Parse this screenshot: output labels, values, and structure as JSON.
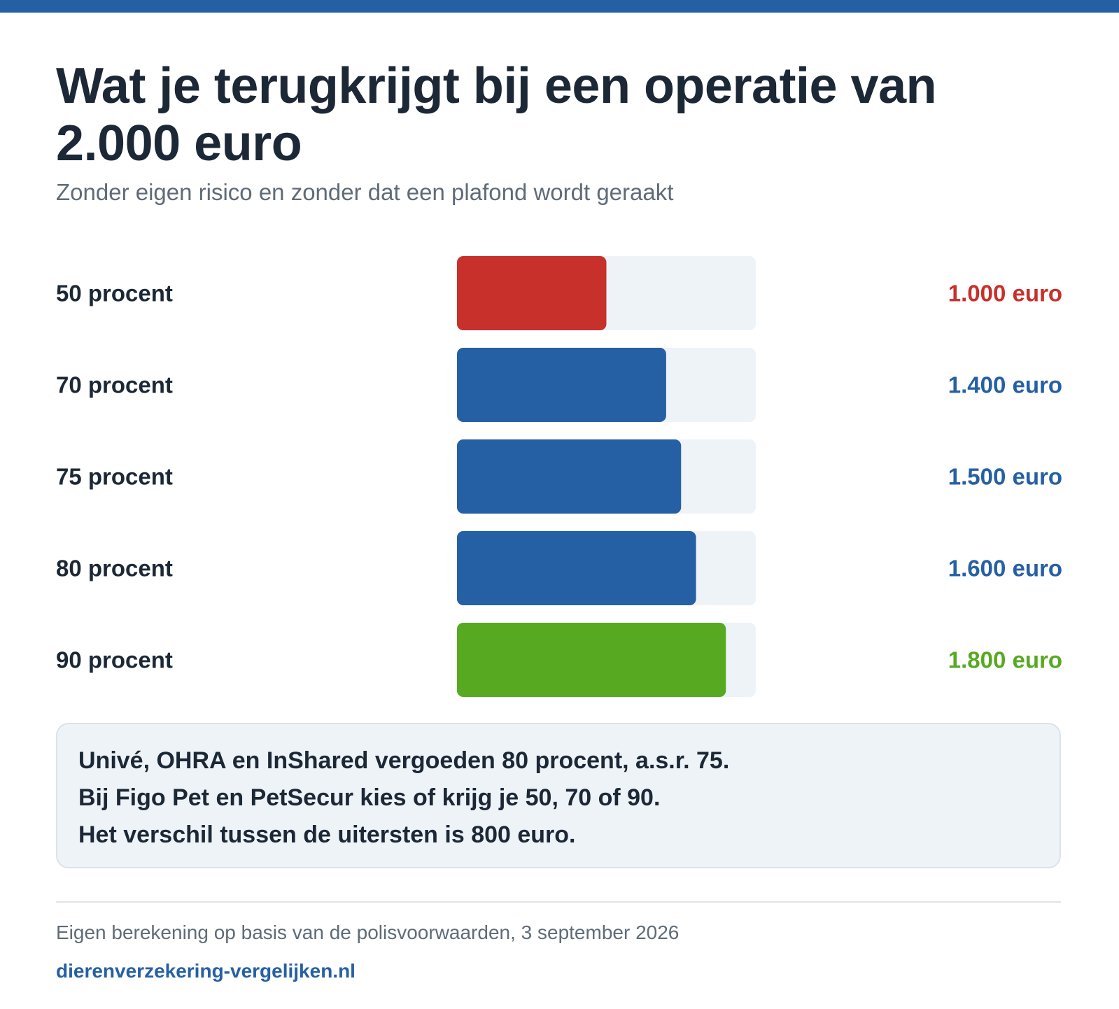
{
  "header": {
    "title": "Wat je terugkrijgt bij een operatie van 2.000 euro",
    "subtitle": "Zonder eigen risico en zonder dat een plafond wordt geraakt"
  },
  "chart_data": {
    "type": "bar",
    "orientation": "horizontal",
    "xlim": [
      0,
      2000
    ],
    "grid": false,
    "legend": "none",
    "categories": [
      "50 procent",
      "70 procent",
      "75 procent",
      "80 procent",
      "90 procent"
    ],
    "values": [
      1000,
      1400,
      1500,
      1600,
      1800
    ],
    "value_labels": [
      "1.000 euro",
      "1.400 euro",
      "1.500 euro",
      "1.600 euro",
      "1.800 euro"
    ],
    "colors": [
      "#c8302c",
      "#2660a4",
      "#2660a4",
      "#2660a4",
      "#57a922"
    ],
    "track_color": "#eef3f8"
  },
  "note": {
    "lines": [
      "Univé, OHRA en InShared vergoeden 80 procent, a.s.r. 75.",
      "Bij Figo Pet en PetSecur kies of krijg je 50, 70 of 90.",
      "Het verschil tussen de uitersten is 800 euro."
    ]
  },
  "footer": {
    "source": "Eigen berekening op basis van de polisvoorwaarden, 3 september 2026",
    "site": "dierenverzekering-vergelijken.nl"
  }
}
